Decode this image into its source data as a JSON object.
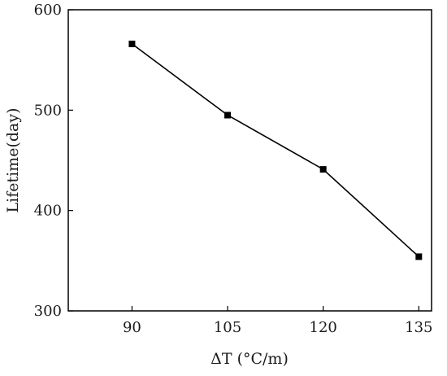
{
  "chart_data": {
    "type": "line",
    "title": "",
    "xlabel": "ΔT (°C/m)",
    "ylabel": "Lifetime(day)",
    "x": [
      90,
      105,
      120,
      135
    ],
    "xticks": [
      "90",
      "105",
      "120",
      "135"
    ],
    "yticks": [
      "300",
      "400",
      "500",
      "600"
    ],
    "xlim": [
      80,
      137
    ],
    "ylim": [
      300,
      600
    ],
    "grid": false,
    "series": [
      {
        "values": [
          566,
          495,
          441,
          354
        ],
        "marker": "square",
        "color": "#000000"
      }
    ]
  }
}
